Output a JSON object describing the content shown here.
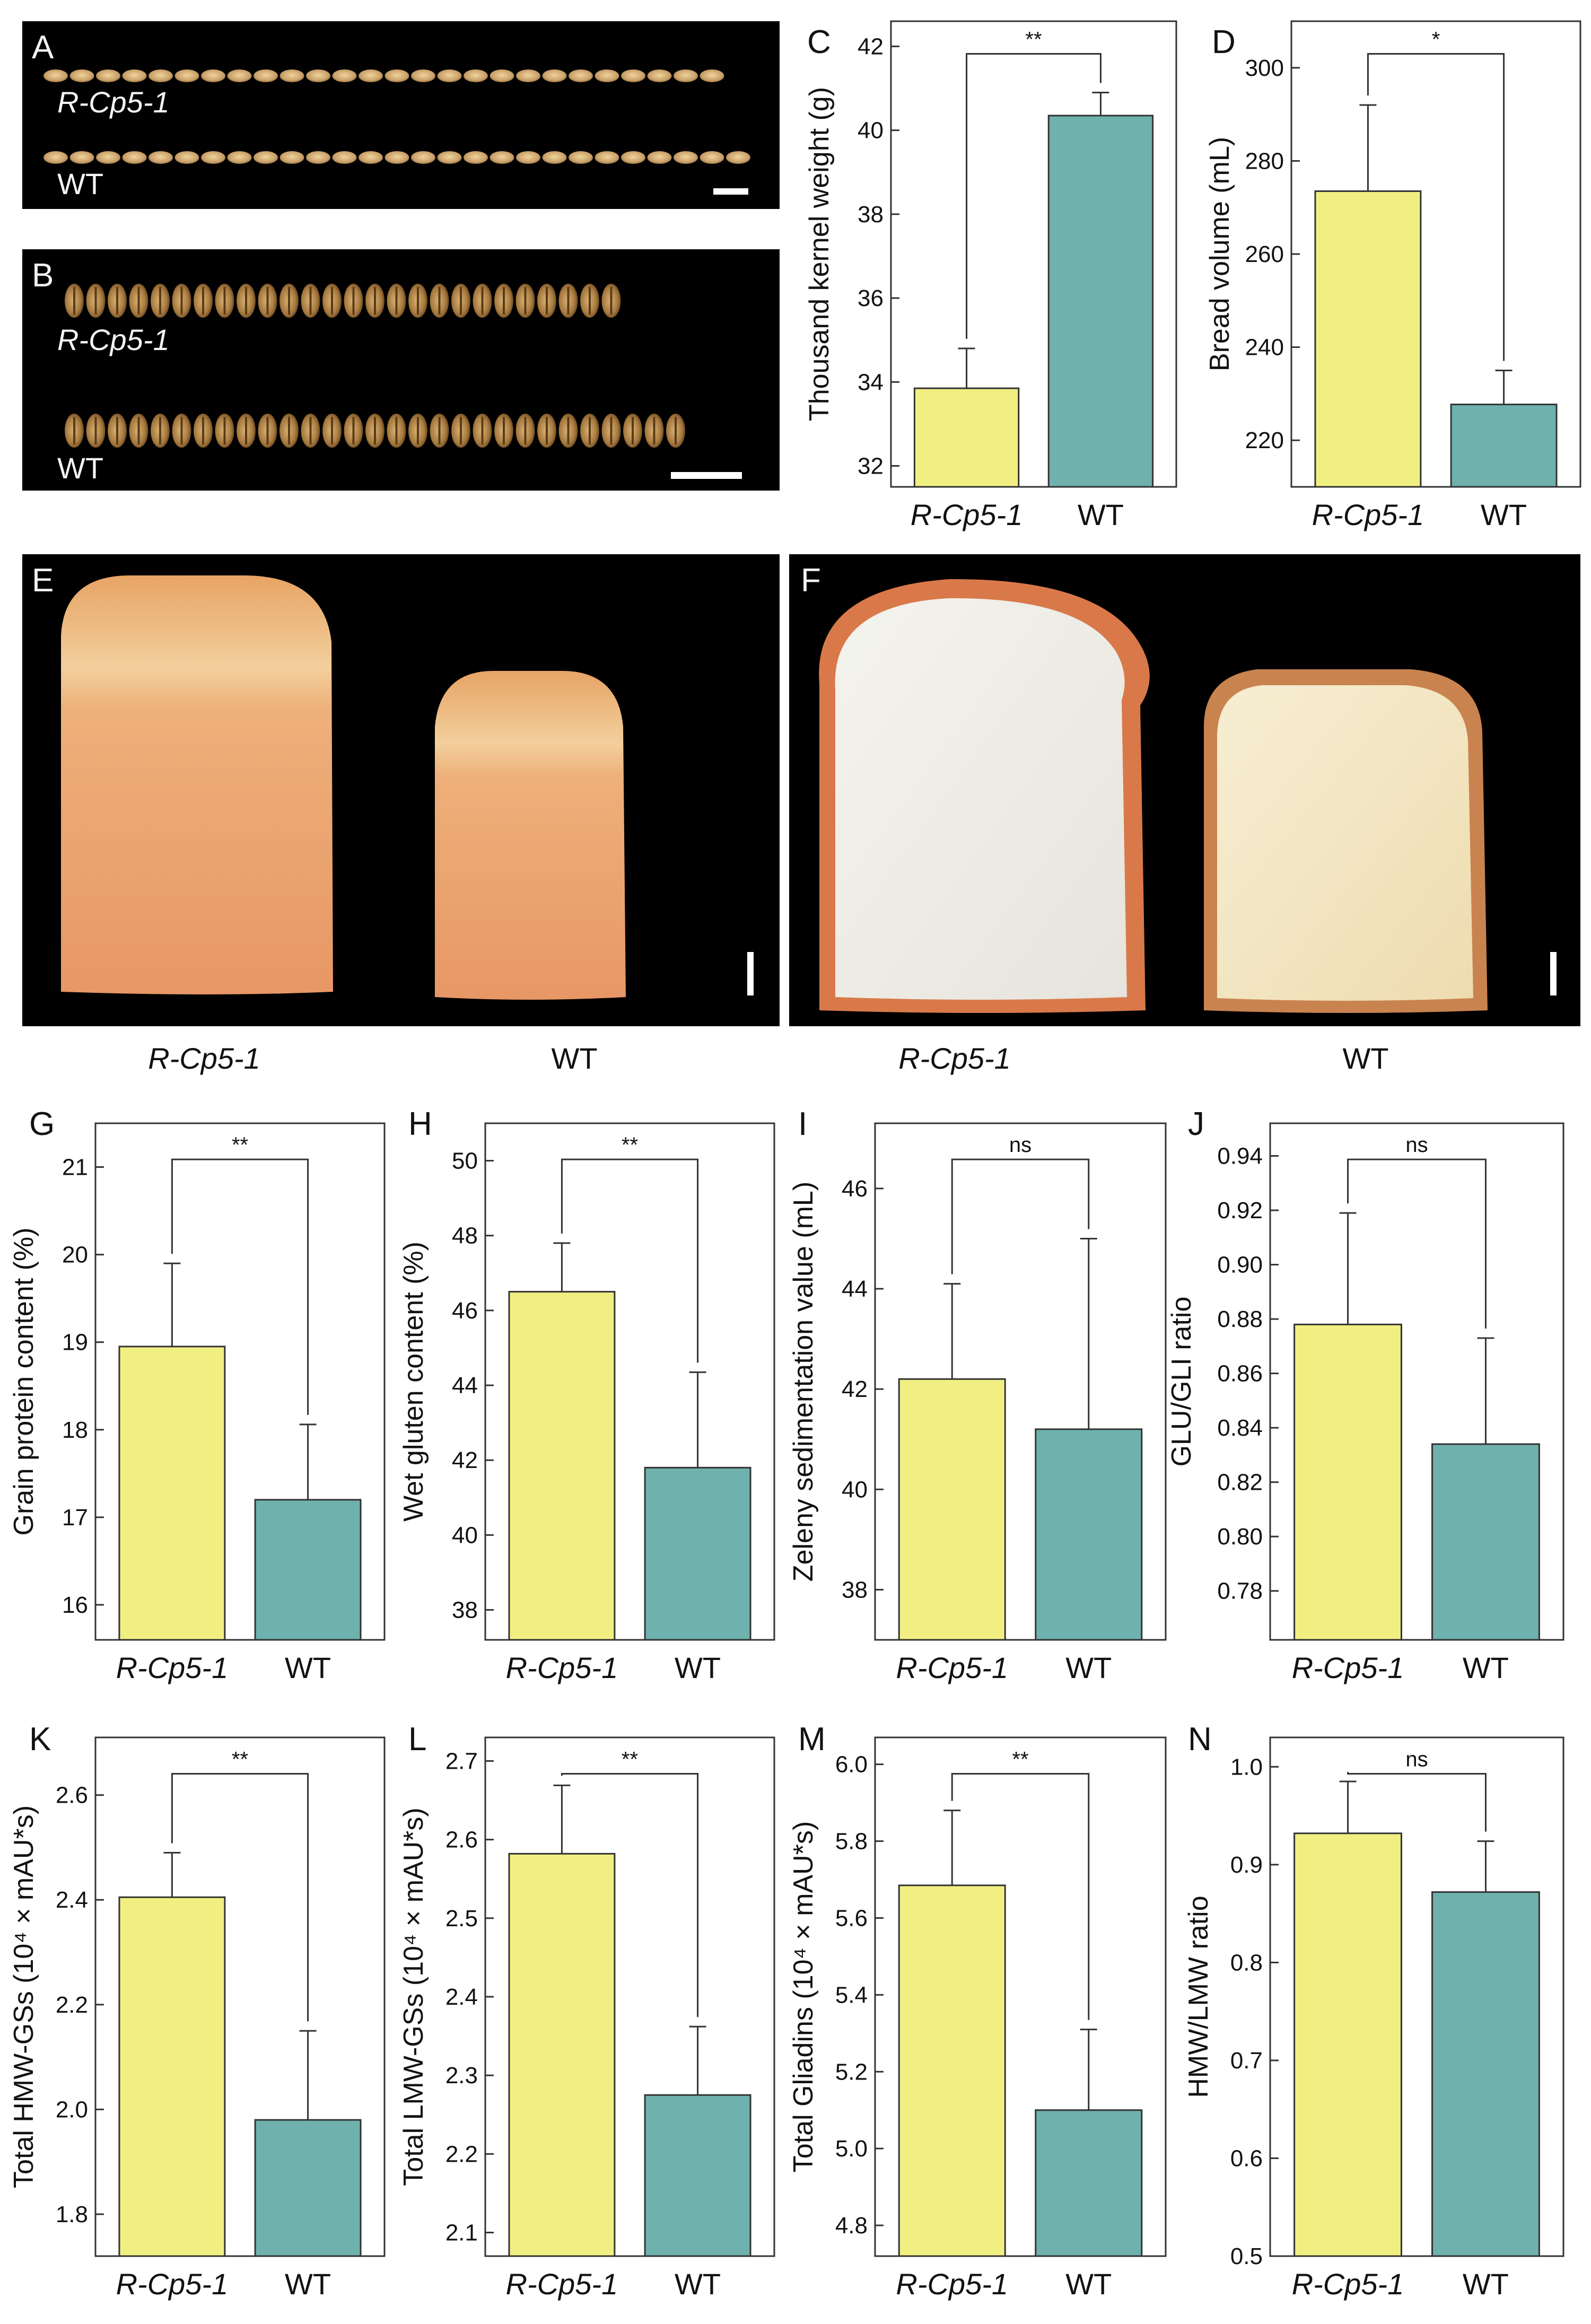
{
  "colors": {
    "r_cp5_bar": "#f2ef82",
    "wt_bar": "#6eb1ad",
    "bar_edge": "#333333",
    "photo_bg": "#000000",
    "grain": "#c9a86a",
    "grain_dark": "#7a5a2e",
    "loaf_crust": "#e59a5e",
    "loaf_top": "#f0c48a",
    "crumb_light": "#f1f0ea",
    "crumb_warm": "#f6e9c2"
  },
  "panel_letters": {
    "A": "A",
    "B": "B",
    "C": "C",
    "D": "D",
    "E": "E",
    "F": "F",
    "G": "G",
    "H": "H",
    "I": "I",
    "J": "J",
    "K": "K",
    "L": "L",
    "M": "M",
    "N": "N"
  },
  "photos": {
    "A": {
      "row1_label": "R-Cp5-1",
      "row2_label": "WT",
      "description_icon": "wheat-kernel-row-icon"
    },
    "B": {
      "row1_label": "R-Cp5-1",
      "row2_label": "WT",
      "description_icon": "wheat-kernel-row-icon"
    },
    "E": {
      "left_label": "R-Cp5-1",
      "right_label": "WT",
      "description_icon": "bread-loaf-icon"
    },
    "F": {
      "left_label": "R-Cp5-1",
      "right_label": "WT",
      "description_icon": "bread-slice-icon"
    }
  },
  "chart_data": [
    {
      "panel": "C",
      "type": "bar",
      "categories": [
        "R-Cp5-1",
        "WT"
      ],
      "values": [
        33.85,
        40.35
      ],
      "errors": [
        0.95,
        0.55
      ],
      "ylabel": "Thousand kernel weight (g)",
      "ylim": [
        31.5,
        42.6
      ],
      "ticks": [
        32,
        34,
        36,
        38,
        40,
        42
      ],
      "significance": "**"
    },
    {
      "panel": "D",
      "type": "bar",
      "categories": [
        "R-Cp5-1",
        "WT"
      ],
      "values": [
        273.5,
        227.7
      ],
      "errors": [
        18.5,
        7.3
      ],
      "ylabel": "Bread volume (mL)",
      "ylim": [
        210,
        310
      ],
      "ticks": [
        220,
        240,
        260,
        280,
        300
      ],
      "significance": "*"
    },
    {
      "panel": "G",
      "type": "bar",
      "categories": [
        "R-Cp5-1",
        "WT"
      ],
      "values": [
        18.95,
        17.2
      ],
      "errors": [
        0.95,
        0.86
      ],
      "ylabel": "Grain protein content (%)",
      "ylim": [
        15.6,
        21.5
      ],
      "ticks": [
        16,
        17,
        18,
        19,
        20,
        21
      ],
      "significance": "**"
    },
    {
      "panel": "H",
      "type": "bar",
      "categories": [
        "R-Cp5-1",
        "WT"
      ],
      "values": [
        46.5,
        41.8
      ],
      "errors": [
        1.3,
        2.55
      ],
      "ylabel": "Wet gluten content (%)",
      "ylim": [
        37.2,
        51.0
      ],
      "ticks": [
        38,
        40,
        42,
        44,
        46,
        48,
        50
      ],
      "significance": "**"
    },
    {
      "panel": "I",
      "type": "bar",
      "categories": [
        "R-Cp5-1",
        "WT"
      ],
      "values": [
        42.2,
        41.2
      ],
      "errors": [
        1.9,
        3.8
      ],
      "ylabel": "Zeleny sedimentation value (mL)",
      "ylim": [
        37.0,
        47.3
      ],
      "ticks": [
        38,
        40,
        42,
        44,
        46
      ],
      "significance": "ns"
    },
    {
      "panel": "J",
      "type": "bar",
      "categories": [
        "R-Cp5-1",
        "WT"
      ],
      "values": [
        0.878,
        0.834
      ],
      "errors": [
        0.041,
        0.039
      ],
      "ylabel": "GLU/GLI ratio",
      "ylim": [
        0.762,
        0.952
      ],
      "ticks": [
        0.78,
        0.8,
        0.82,
        0.84,
        0.86,
        0.88,
        0.9,
        0.92,
        0.94
      ],
      "tick_decimals": 2,
      "significance": "ns"
    },
    {
      "panel": "K",
      "type": "bar",
      "categories": [
        "R-Cp5-1",
        "WT"
      ],
      "values": [
        2.405,
        1.98
      ],
      "errors": [
        0.085,
        0.17
      ],
      "ylabel": "Total HMW-GSs (10⁴ × mAU*s)",
      "ylim": [
        1.72,
        2.71
      ],
      "ticks": [
        1.8,
        2.0,
        2.2,
        2.4,
        2.6
      ],
      "tick_decimals": 1,
      "significance": "**"
    },
    {
      "panel": "L",
      "type": "bar",
      "categories": [
        "R-Cp5-1",
        "WT"
      ],
      "values": [
        2.582,
        2.275
      ],
      "errors": [
        0.087,
        0.087
      ],
      "ylabel": "Total LMW-GSs (10⁴ × mAU*s)",
      "ylim": [
        2.07,
        2.73
      ],
      "ticks": [
        2.1,
        2.2,
        2.3,
        2.4,
        2.5,
        2.6,
        2.7
      ],
      "tick_decimals": 1,
      "significance": "**"
    },
    {
      "panel": "M",
      "type": "bar",
      "categories": [
        "R-Cp5-1",
        "WT"
      ],
      "values": [
        5.685,
        5.1
      ],
      "errors": [
        0.195,
        0.21
      ],
      "ylabel": "Total Gliadins (10⁴ × mAU*s)",
      "ylim": [
        4.72,
        6.07
      ],
      "ticks": [
        4.8,
        5.0,
        5.2,
        5.4,
        5.6,
        5.8,
        6.0
      ],
      "tick_decimals": 1,
      "significance": "**"
    },
    {
      "panel": "N",
      "type": "bar",
      "categories": [
        "R-Cp5-1",
        "WT"
      ],
      "values": [
        0.932,
        0.872
      ],
      "errors": [
        0.053,
        0.052
      ],
      "ylabel": "HMW/LMW ratio",
      "ylim": [
        0.5,
        1.03
      ],
      "ticks": [
        0.5,
        0.6,
        0.7,
        0.8,
        0.9,
        1.0
      ],
      "tick_decimals": 1,
      "significance": "ns"
    }
  ]
}
